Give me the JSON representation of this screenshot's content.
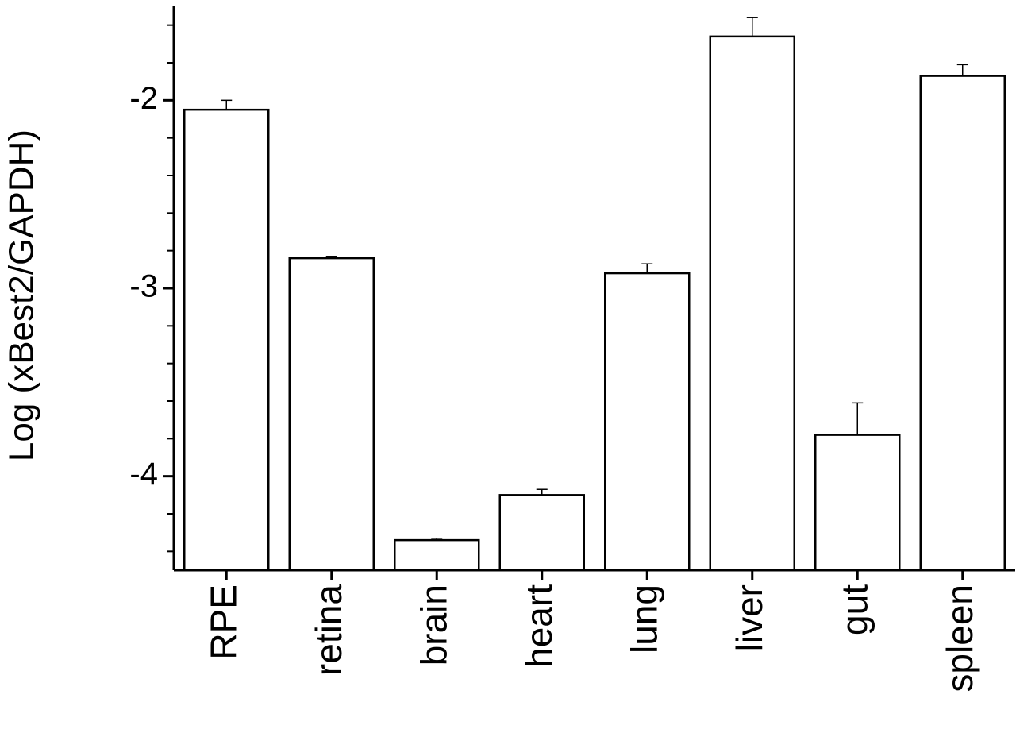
{
  "chart_data": {
    "type": "bar",
    "y_label": "Log (xBest2/GAPDH)",
    "categories": [
      "RPE",
      "retina",
      "brain",
      "heart",
      "lung",
      "liver",
      "gut",
      "spleen"
    ],
    "values": [
      -2.05,
      -2.84,
      -4.34,
      -4.1,
      -2.92,
      -1.66,
      -3.78,
      -1.87
    ],
    "errors": [
      0.05,
      0.01,
      0.01,
      0.03,
      0.05,
      0.1,
      0.17,
      0.06
    ],
    "color": "#ffffff",
    "ylim": [
      -4.5,
      -1.5
    ],
    "yticks": [
      -4,
      -3,
      -2
    ],
    "yminorticks": [
      -4.4,
      -4.2,
      -3.8,
      -3.6,
      -3.4,
      -3.2,
      -2.8,
      -2.6,
      -2.4,
      -2.2,
      -1.8,
      -1.6
    ],
    "grid": false
  }
}
